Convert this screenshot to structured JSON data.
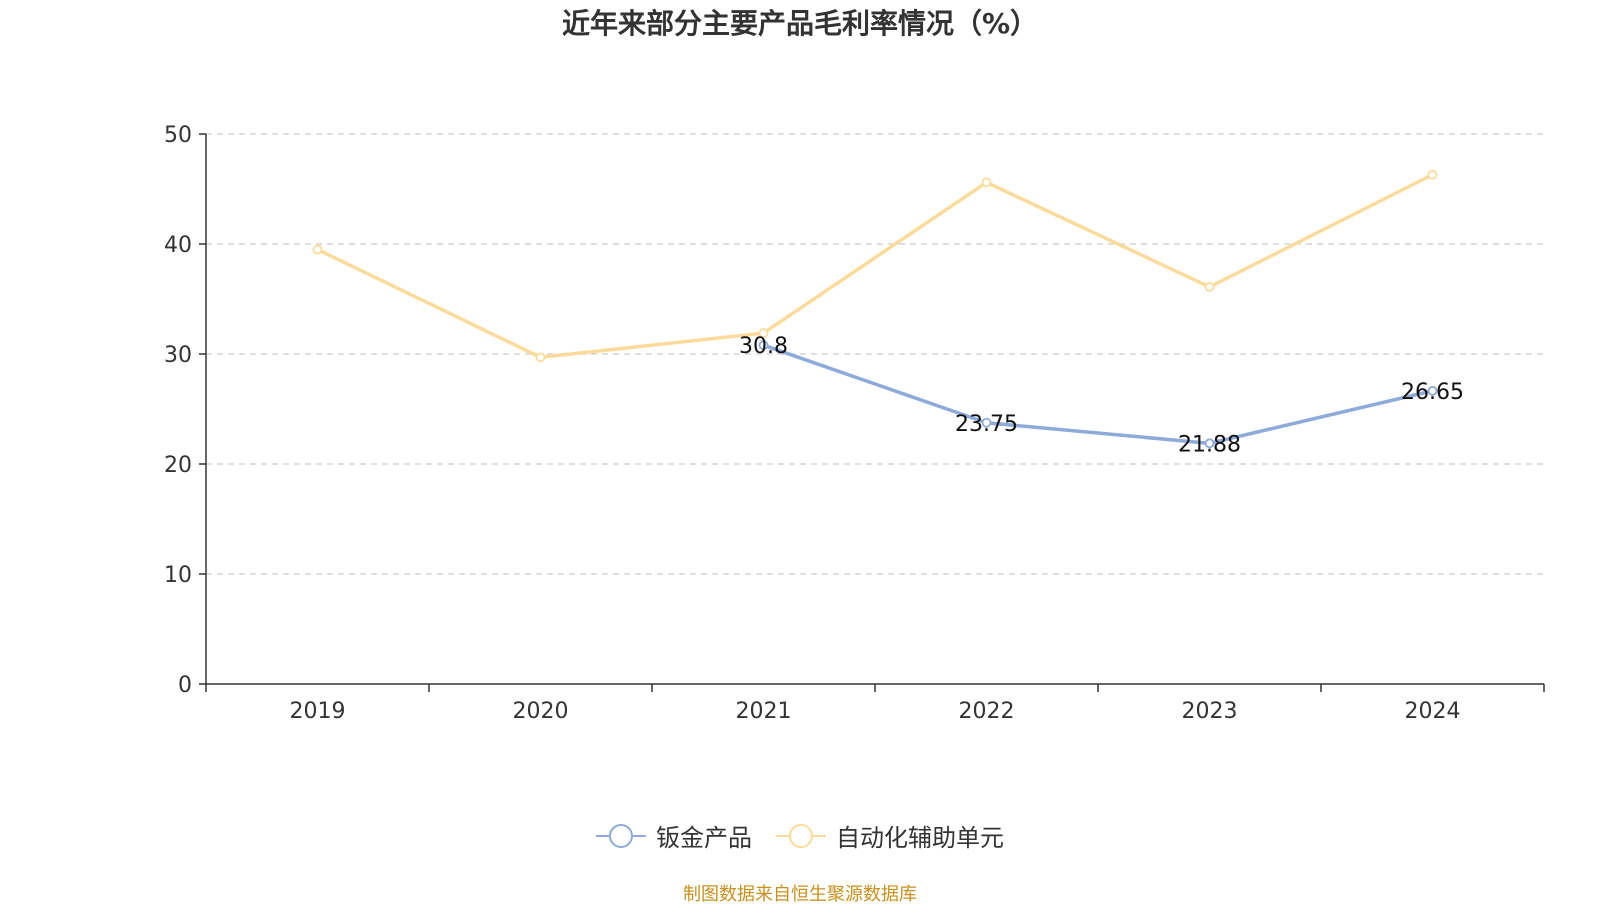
{
  "chart_data": {
    "type": "line",
    "title": "近年来部分主要产品毛利率情况（%）",
    "categories": [
      "2019",
      "2020",
      "2021",
      "2022",
      "2023",
      "2024"
    ],
    "ylim": [
      0,
      50
    ],
    "yticks": [
      "0",
      "10",
      "20",
      "30",
      "40",
      "50"
    ],
    "grid": true,
    "legend_position": "bottom",
    "series": [
      {
        "name": "钣金产品",
        "color": "#8eaad8",
        "values": [
          null,
          null,
          30.8,
          23.75,
          21.88,
          26.65
        ],
        "labels": [
          "",
          "",
          "30.8",
          "23.75",
          "21.88",
          "26.65"
        ]
      },
      {
        "name": "自动化辅助单元",
        "color": "#fbdb9c",
        "values": [
          39.5,
          29.7,
          31.9,
          45.6,
          36.1,
          46.3
        ],
        "labels": [
          "",
          "",
          "",
          "",
          "",
          ""
        ]
      }
    ]
  },
  "source": "制图数据来自恒生聚源数据库"
}
